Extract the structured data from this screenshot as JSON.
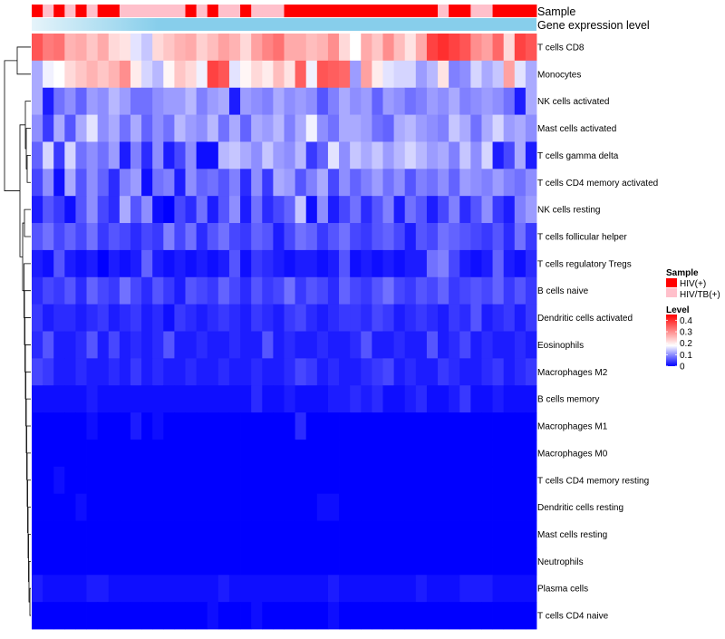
{
  "chart_data": {
    "type": "heatmap",
    "title": "",
    "annotation_labels": {
      "sample": "Sample",
      "expression": "Gene expression level"
    },
    "row_labels": [
      "T cells CD8",
      "Monocytes",
      "NK cells activated",
      "Mast cells activated",
      "T cells gamma delta",
      "T cells CD4 memory activated",
      "NK cells resting",
      "T cells follicular helper",
      "T cells regulatory  Tregs",
      "B cells naive",
      "Dendritic cells activated",
      "Eosinophils",
      "Macrophages M2",
      "B cells memory",
      "Macrophages M1",
      "Macrophages M0",
      "T cells CD4 memory resting",
      "Dendritic cells resting",
      "Mast cells resting",
      "Neutrophils",
      "Plasma cells",
      "T cells CD4 naive"
    ],
    "n_samples": 46,
    "sample_groups": [
      "HIV(+)",
      "HIV/TB(+)",
      "HIV(+)",
      "HIV/TB(+)",
      "HIV(+)",
      "HIV/TB(+)",
      "HIV(+)",
      "HIV(+)",
      "HIV/TB(+)",
      "HIV/TB(+)",
      "HIV/TB(+)",
      "HIV/TB(+)",
      "HIV/TB(+)",
      "HIV/TB(+)",
      "HIV(+)",
      "HIV/TB(+)",
      "HIV(+)",
      "HIV/TB(+)",
      "HIV/TB(+)",
      "HIV(+)",
      "HIV/TB(+)",
      "HIV/TB(+)",
      "HIV/TB(+)",
      "HIV(+)",
      "HIV(+)",
      "HIV(+)",
      "HIV(+)",
      "HIV(+)",
      "HIV(+)",
      "HIV(+)",
      "HIV(+)",
      "HIV(+)",
      "HIV(+)",
      "HIV(+)",
      "HIV(+)",
      "HIV(+)",
      "HIV(+)",
      "HIV/TB(+)",
      "HIV(+)",
      "HIV(+)",
      "HIV/TB(+)",
      "HIV/TB(+)",
      "HIV(+)",
      "HIV(+)",
      "HIV(+)",
      "HIV(+)"
    ],
    "values": [
      [
        0.36,
        0.32,
        0.33,
        0.26,
        0.27,
        0.24,
        0.27,
        0.22,
        0.21,
        0.16,
        0.14,
        0.22,
        0.24,
        0.26,
        0.27,
        0.23,
        0.25,
        0.28,
        0.26,
        0.22,
        0.28,
        0.31,
        0.33,
        0.27,
        0.27,
        0.25,
        0.26,
        0.3,
        0.22,
        0.18,
        0.27,
        0.24,
        0.3,
        0.25,
        0.21,
        0.27,
        0.38,
        0.4,
        0.38,
        0.36,
        0.3,
        0.28,
        0.34,
        0.22,
        0.38,
        0.36
      ],
      [
        0.12,
        0.17,
        0.18,
        0.22,
        0.24,
        0.26,
        0.24,
        0.26,
        0.3,
        0.2,
        0.15,
        0.13,
        0.19,
        0.24,
        0.22,
        0.17,
        0.38,
        0.36,
        0.16,
        0.19,
        0.22,
        0.2,
        0.25,
        0.21,
        0.35,
        0.17,
        0.36,
        0.35,
        0.34,
        0.11,
        0.28,
        0.2,
        0.16,
        0.15,
        0.15,
        0.11,
        0.13,
        0.21,
        0.09,
        0.1,
        0.15,
        0.12,
        0.14,
        0.28,
        0.16,
        0.12
      ],
      [
        0.12,
        0.02,
        0.08,
        0.1,
        0.07,
        0.11,
        0.1,
        0.13,
        0.11,
        0.08,
        0.08,
        0.1,
        0.11,
        0.11,
        0.13,
        0.09,
        0.11,
        0.12,
        0.02,
        0.11,
        0.1,
        0.09,
        0.12,
        0.1,
        0.11,
        0.1,
        0.06,
        0.09,
        0.12,
        0.1,
        0.11,
        0.07,
        0.11,
        0.1,
        0.08,
        0.09,
        0.11,
        0.1,
        0.12,
        0.09,
        0.1,
        0.11,
        0.1,
        0.08,
        0.02,
        0.12
      ],
      [
        0.1,
        0.04,
        0.12,
        0.06,
        0.12,
        0.16,
        0.1,
        0.12,
        0.08,
        0.12,
        0.07,
        0.1,
        0.08,
        0.13,
        0.11,
        0.1,
        0.13,
        0.08,
        0.12,
        0.07,
        0.12,
        0.11,
        0.13,
        0.09,
        0.12,
        0.17,
        0.1,
        0.08,
        0.12,
        0.12,
        0.11,
        0.08,
        0.07,
        0.12,
        0.13,
        0.11,
        0.1,
        0.09,
        0.14,
        0.12,
        0.08,
        0.12,
        0.15,
        0.11,
        0.12,
        0.1
      ],
      [
        0.07,
        0.15,
        0.04,
        0.15,
        0.08,
        0.1,
        0.08,
        0.11,
        0.02,
        0.09,
        0.03,
        0.1,
        0.02,
        0.05,
        0.1,
        0.01,
        0.01,
        0.13,
        0.14,
        0.12,
        0.1,
        0.14,
        0.11,
        0.1,
        0.13,
        0.04,
        0.07,
        0.16,
        0.1,
        0.14,
        0.12,
        0.14,
        0.11,
        0.13,
        0.15,
        0.13,
        0.11,
        0.12,
        0.09,
        0.14,
        0.1,
        0.15,
        0.02,
        0.05,
        0.12,
        0.02
      ],
      [
        0.05,
        0.1,
        0.01,
        0.12,
        0.06,
        0.1,
        0.07,
        0.03,
        0.09,
        0.11,
        0.01,
        0.08,
        0.09,
        0.02,
        0.1,
        0.07,
        0.08,
        0.06,
        0.09,
        0.03,
        0.1,
        0.04,
        0.12,
        0.11,
        0.06,
        0.09,
        0.12,
        0.05,
        0.1,
        0.07,
        0.09,
        0.11,
        0.08,
        0.1,
        0.06,
        0.09,
        0.08,
        0.1,
        0.07,
        0.11,
        0.1,
        0.09,
        0.11,
        0.09,
        0.08,
        0.1
      ],
      [
        0.02,
        0.06,
        0.04,
        0.01,
        0.06,
        0.1,
        0.05,
        0.03,
        0.12,
        0.06,
        0.1,
        0.01,
        0.0,
        0.05,
        0.03,
        0.08,
        0.02,
        0.06,
        0.1,
        0.02,
        0.08,
        0.03,
        0.05,
        0.07,
        0.14,
        0.01,
        0.1,
        0.02,
        0.05,
        0.08,
        0.03,
        0.06,
        0.09,
        0.02,
        0.08,
        0.06,
        0.02,
        0.05,
        0.09,
        0.03,
        0.06,
        0.1,
        0.04,
        0.02,
        0.09,
        0.11
      ],
      [
        0.06,
        0.08,
        0.05,
        0.07,
        0.05,
        0.08,
        0.04,
        0.06,
        0.05,
        0.03,
        0.05,
        0.04,
        0.09,
        0.05,
        0.08,
        0.03,
        0.06,
        0.08,
        0.05,
        0.04,
        0.07,
        0.06,
        0.02,
        0.05,
        0.08,
        0.07,
        0.04,
        0.06,
        0.08,
        0.05,
        0.04,
        0.06,
        0.07,
        0.05,
        0.02,
        0.06,
        0.05,
        0.08,
        0.07,
        0.06,
        0.05,
        0.04,
        0.06,
        0.03,
        0.08,
        0.04
      ],
      [
        0.02,
        0.01,
        0.06,
        0.02,
        0.01,
        0.02,
        0.0,
        0.02,
        0.01,
        0.02,
        0.07,
        0.02,
        0.01,
        0.02,
        0.01,
        0.02,
        0.01,
        0.02,
        0.06,
        0.01,
        0.04,
        0.03,
        0.02,
        0.01,
        0.02,
        0.02,
        0.01,
        0.02,
        0.06,
        0.01,
        0.02,
        0.01,
        0.02,
        0.01,
        0.02,
        0.02,
        0.08,
        0.09,
        0.05,
        0.02,
        0.01,
        0.02,
        0.07,
        0.02,
        0.01,
        0.03
      ],
      [
        0.03,
        0.05,
        0.04,
        0.06,
        0.03,
        0.07,
        0.05,
        0.04,
        0.08,
        0.05,
        0.03,
        0.06,
        0.04,
        0.02,
        0.06,
        0.05,
        0.04,
        0.07,
        0.05,
        0.03,
        0.06,
        0.04,
        0.05,
        0.08,
        0.04,
        0.06,
        0.05,
        0.03,
        0.07,
        0.05,
        0.04,
        0.06,
        0.08,
        0.05,
        0.04,
        0.06,
        0.05,
        0.07,
        0.04,
        0.05,
        0.06,
        0.05,
        0.07,
        0.04,
        0.06,
        0.04
      ],
      [
        0.04,
        0.02,
        0.03,
        0.03,
        0.02,
        0.03,
        0.04,
        0.02,
        0.03,
        0.04,
        0.02,
        0.03,
        0.01,
        0.04,
        0.03,
        0.02,
        0.03,
        0.04,
        0.03,
        0.02,
        0.04,
        0.03,
        0.02,
        0.04,
        0.05,
        0.03,
        0.02,
        0.03,
        0.04,
        0.04,
        0.03,
        0.05,
        0.04,
        0.02,
        0.03,
        0.04,
        0.03,
        0.02,
        0.04,
        0.03,
        0.06,
        0.02,
        0.03,
        0.04,
        0.02,
        0.04
      ],
      [
        0.03,
        0.06,
        0.02,
        0.02,
        0.03,
        0.06,
        0.02,
        0.05,
        0.02,
        0.03,
        0.02,
        0.03,
        0.06,
        0.02,
        0.02,
        0.03,
        0.02,
        0.02,
        0.03,
        0.02,
        0.02,
        0.06,
        0.02,
        0.03,
        0.02,
        0.02,
        0.03,
        0.02,
        0.02,
        0.03,
        0.06,
        0.02,
        0.02,
        0.03,
        0.02,
        0.02,
        0.06,
        0.02,
        0.03,
        0.05,
        0.02,
        0.03,
        0.02,
        0.02,
        0.03,
        0.02
      ],
      [
        0.05,
        0.04,
        0.02,
        0.02,
        0.03,
        0.02,
        0.02,
        0.03,
        0.02,
        0.04,
        0.02,
        0.03,
        0.02,
        0.02,
        0.03,
        0.02,
        0.02,
        0.03,
        0.02,
        0.02,
        0.03,
        0.02,
        0.02,
        0.03,
        0.05,
        0.04,
        0.02,
        0.03,
        0.02,
        0.02,
        0.03,
        0.04,
        0.05,
        0.02,
        0.03,
        0.02,
        0.02,
        0.04,
        0.03,
        0.02,
        0.02,
        0.03,
        0.04,
        0.02,
        0.03,
        0.04
      ],
      [
        0.01,
        0.01,
        0.01,
        0.01,
        0.01,
        0.02,
        0.01,
        0.01,
        0.01,
        0.01,
        0.01,
        0.01,
        0.01,
        0.01,
        0.01,
        0.01,
        0.01,
        0.01,
        0.01,
        0.01,
        0.03,
        0.01,
        0.01,
        0.02,
        0.01,
        0.01,
        0.01,
        0.02,
        0.02,
        0.03,
        0.02,
        0.03,
        0.01,
        0.01,
        0.02,
        0.03,
        0.01,
        0.01,
        0.02,
        0.04,
        0.01,
        0.01,
        0.02,
        0.01,
        0.01,
        0.01
      ],
      [
        0.0,
        0.0,
        0.0,
        0.0,
        0.0,
        0.01,
        0.0,
        0.0,
        0.0,
        0.02,
        0.0,
        0.01,
        0.0,
        0.0,
        0.0,
        0.0,
        0.0,
        0.0,
        0.0,
        0.0,
        0.0,
        0.0,
        0.0,
        0.0,
        0.03,
        0.0,
        0.0,
        0.0,
        0.0,
        0.0,
        0.0,
        0.0,
        0.0,
        0.0,
        0.0,
        0.0,
        0.0,
        0.0,
        0.0,
        0.0,
        0.0,
        0.0,
        0.0,
        0.0,
        0.0,
        0.0
      ],
      [
        0.0,
        0.0,
        0.0,
        0.0,
        0.0,
        0.0,
        0.0,
        0.0,
        0.0,
        0.0,
        0.0,
        0.0,
        0.0,
        0.0,
        0.0,
        0.0,
        0.0,
        0.0,
        0.0,
        0.0,
        0.0,
        0.0,
        0.0,
        0.0,
        0.0,
        0.0,
        0.0,
        0.0,
        0.0,
        0.0,
        0.0,
        0.0,
        0.0,
        0.0,
        0.0,
        0.0,
        0.0,
        0.0,
        0.0,
        0.0,
        0.0,
        0.0,
        0.0,
        0.0,
        0.0,
        0.0
      ],
      [
        0.0,
        0.0,
        0.01,
        0.0,
        0.0,
        0.0,
        0.0,
        0.0,
        0.0,
        0.0,
        0.0,
        0.0,
        0.0,
        0.0,
        0.0,
        0.0,
        0.0,
        0.0,
        0.0,
        0.0,
        0.0,
        0.0,
        0.0,
        0.0,
        0.0,
        0.0,
        0.0,
        0.0,
        0.0,
        0.0,
        0.0,
        0.0,
        0.0,
        0.0,
        0.0,
        0.0,
        0.0,
        0.0,
        0.0,
        0.0,
        0.0,
        0.0,
        0.0,
        0.0,
        0.0,
        0.0
      ],
      [
        0.0,
        0.0,
        0.0,
        0.0,
        0.01,
        0.0,
        0.0,
        0.0,
        0.0,
        0.0,
        0.0,
        0.0,
        0.0,
        0.0,
        0.0,
        0.0,
        0.0,
        0.0,
        0.0,
        0.0,
        0.0,
        0.0,
        0.0,
        0.0,
        0.0,
        0.0,
        0.01,
        0.01,
        0.0,
        0.0,
        0.0,
        0.0,
        0.0,
        0.0,
        0.0,
        0.0,
        0.0,
        0.0,
        0.0,
        0.0,
        0.0,
        0.0,
        0.0,
        0.0,
        0.0,
        0.0
      ],
      [
        0.0,
        0.0,
        0.0,
        0.0,
        0.0,
        0.0,
        0.0,
        0.0,
        0.0,
        0.0,
        0.0,
        0.0,
        0.0,
        0.0,
        0.0,
        0.0,
        0.0,
        0.0,
        0.0,
        0.0,
        0.0,
        0.0,
        0.0,
        0.0,
        0.0,
        0.0,
        0.0,
        0.0,
        0.0,
        0.0,
        0.0,
        0.0,
        0.0,
        0.0,
        0.0,
        0.0,
        0.0,
        0.0,
        0.0,
        0.0,
        0.0,
        0.0,
        0.0,
        0.0,
        0.0,
        0.0
      ],
      [
        0.0,
        0.0,
        0.0,
        0.0,
        0.0,
        0.0,
        0.0,
        0.0,
        0.0,
        0.0,
        0.0,
        0.0,
        0.0,
        0.0,
        0.0,
        0.0,
        0.0,
        0.0,
        0.0,
        0.0,
        0.0,
        0.0,
        0.0,
        0.0,
        0.0,
        0.0,
        0.0,
        0.0,
        0.0,
        0.0,
        0.0,
        0.0,
        0.0,
        0.0,
        0.0,
        0.0,
        0.0,
        0.0,
        0.0,
        0.0,
        0.0,
        0.0,
        0.0,
        0.0,
        0.0,
        0.0
      ],
      [
        0.02,
        0.01,
        0.01,
        0.01,
        0.01,
        0.02,
        0.02,
        0.01,
        0.01,
        0.01,
        0.01,
        0.01,
        0.01,
        0.01,
        0.01,
        0.01,
        0.01,
        0.02,
        0.01,
        0.01,
        0.01,
        0.01,
        0.01,
        0.01,
        0.01,
        0.01,
        0.01,
        0.02,
        0.01,
        0.01,
        0.01,
        0.01,
        0.01,
        0.01,
        0.01,
        0.02,
        0.01,
        0.01,
        0.01,
        0.02,
        0.02,
        0.02,
        0.01,
        0.01,
        0.01,
        0.01
      ],
      [
        0.0,
        0.0,
        0.0,
        0.0,
        0.0,
        0.0,
        0.0,
        0.0,
        0.0,
        0.0,
        0.0,
        0.0,
        0.0,
        0.0,
        0.0,
        0.0,
        0.01,
        0.0,
        0.0,
        0.0,
        0.01,
        0.0,
        0.0,
        0.0,
        0.0,
        0.0,
        0.0,
        0.01,
        0.0,
        0.0,
        0.0,
        0.0,
        0.0,
        0.0,
        0.0,
        0.0,
        0.0,
        0.0,
        0.0,
        0.0,
        0.0,
        0.0,
        0.0,
        0.0,
        0.0,
        0.0
      ]
    ],
    "color_scale": {
      "low": "#0000FF",
      "mid": "#FFFFFF",
      "high": "#FF0000",
      "range": [
        0,
        0.45
      ],
      "midpoint": 0.18
    },
    "legend": {
      "sample_title": "Sample",
      "sample_entries": [
        {
          "label": "HIV(+)",
          "color": "#FF0000"
        },
        {
          "label": "HIV/TB(+)",
          "color": "#FFC0CB"
        }
      ],
      "level_title": "Level",
      "level_ticks": [
        0.4,
        0.3,
        0.2,
        0.1,
        0
      ],
      "level_tick_labels": [
        "0.4",
        "0.3",
        "0.2",
        "0.1",
        "0"
      ]
    },
    "expression_bar_color": "#87CEEB"
  }
}
